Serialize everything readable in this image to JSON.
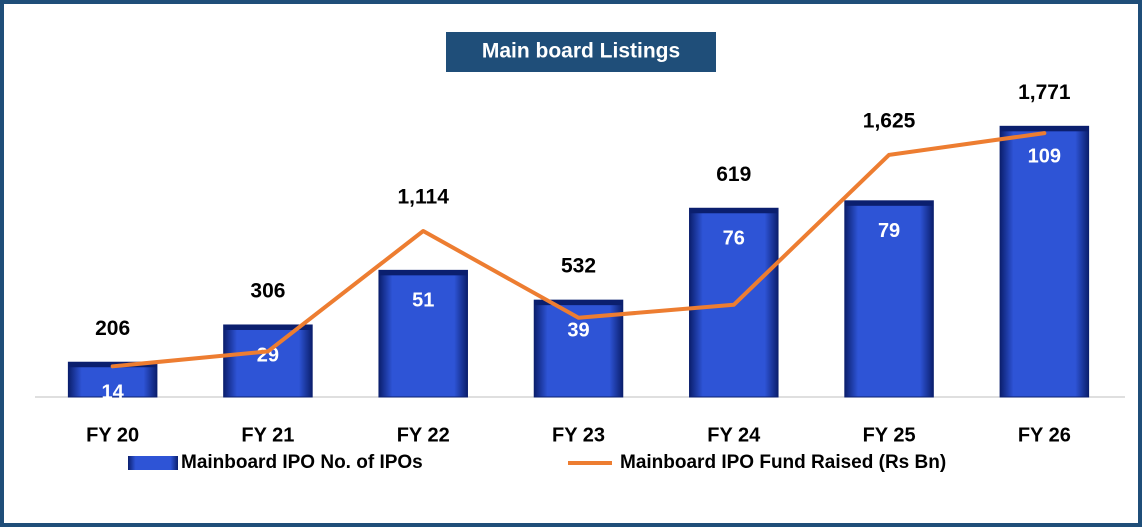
{
  "chart_data": {
    "type": "bar",
    "title": "Main board Listings",
    "categories": [
      "FY 20",
      "FY 21",
      "FY 22",
      "FY 23",
      "FY 24",
      "FY 25",
      "FY 26"
    ],
    "series": [
      {
        "name": "Mainboard IPO No. of IPOs",
        "type": "bar",
        "color": "#2e54d6",
        "values": [
          14,
          29,
          51,
          39,
          76,
          79,
          109
        ]
      },
      {
        "name": "Mainboard IPO Fund Raised (Rs Bn)",
        "type": "line",
        "axis": "y2",
        "color": "#ed7d31",
        "values": [
          206,
          306,
          1114,
          532,
          619,
          1625,
          1771
        ],
        "value_labels": [
          "206",
          "306",
          "1,114",
          "532",
          "619",
          "1,625",
          "1,771"
        ]
      }
    ],
    "ylim": [
      0,
      120
    ],
    "y2lim": [
      0,
      2000
    ],
    "legend": "bottom"
  }
}
